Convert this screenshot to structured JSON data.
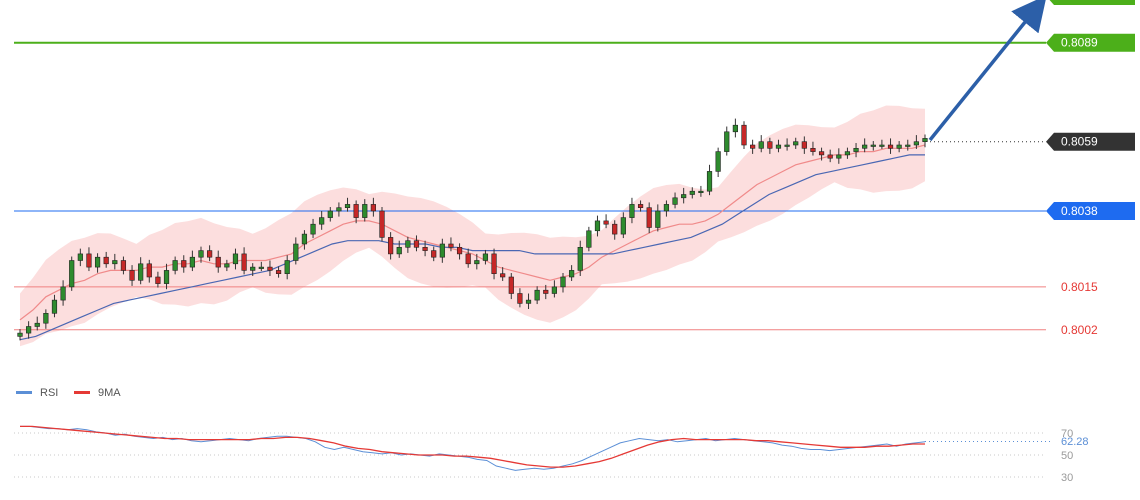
{
  "chart_data": [
    {
      "type": "candlestick",
      "y_range": [
        7994,
        8094
      ],
      "levels": [
        {
          "value": "0.8089",
          "price": 8089,
          "color": "#4caf1a",
          "style": "green-line",
          "label_color": "#ffffff"
        },
        {
          "value": "0.8059",
          "price": 8059,
          "color": "#333333",
          "style": "current-dotted",
          "label_color": "#ffffff"
        },
        {
          "value": "0.8038",
          "price": 8038,
          "color": "#1e6bf0",
          "style": "blue-line",
          "label_color": "#ffffff"
        },
        {
          "value": "0.8015",
          "price": 8015,
          "color": "#f08080",
          "style": "red-line",
          "label_color": "#e53935"
        },
        {
          "value": "0.8002",
          "price": 8002,
          "color": "#f08080",
          "style": "red-line",
          "label_color": "#e53935"
        }
      ],
      "candles_close": [
        8001,
        8003,
        8004,
        8007,
        8011,
        8015,
        8023,
        8025,
        8021,
        8024,
        8022,
        8023,
        8020,
        8017,
        8022,
        8018,
        8016,
        8020,
        8023,
        8021,
        8024,
        8026,
        8024,
        8021,
        8022,
        8025,
        8020,
        8021,
        8021,
        8020,
        8019,
        8023,
        8028,
        8031,
        8034,
        8036,
        8038,
        8039,
        8040,
        8036,
        8040,
        8038,
        8030,
        8025,
        8027,
        8029,
        8027,
        8026,
        8024,
        8028,
        8027,
        8025,
        8022,
        8023,
        8025,
        8019,
        8018,
        8013,
        8010,
        8011,
        8014,
        8013,
        8015,
        8018,
        8020,
        8027,
        8032,
        8035,
        8034,
        8031,
        8036,
        8040,
        8039,
        8033,
        8038,
        8040,
        8042,
        8043,
        8044,
        8044,
        8050,
        8056,
        8062,
        8064,
        8058,
        8057,
        8059,
        8057,
        8058,
        8058,
        8059,
        8057,
        8056,
        8055,
        8054,
        8055,
        8056,
        8057,
        8058,
        8058,
        8058,
        8057,
        8058,
        8058,
        8059,
        8060
      ],
      "ma_red": [
        8005,
        8008,
        8012,
        8014,
        8016,
        8017,
        8019,
        8020,
        8020,
        8020,
        8021,
        8021,
        8022,
        8022,
        8023,
        8022,
        8022,
        8023,
        8023,
        8023,
        8024,
        8025,
        8028,
        8030,
        8032,
        8034,
        8035,
        8035,
        8034,
        8032,
        8030,
        8029,
        8028,
        8027,
        8026,
        8025,
        8023,
        8021,
        8020,
        8019,
        8018,
        8017,
        8018,
        8019,
        8021,
        8024,
        8026,
        8028,
        8030,
        8032,
        8033,
        8034,
        8034,
        8035,
        8037,
        8040,
        8043,
        8046,
        8048,
        8050,
        8052,
        8053,
        8054,
        8055,
        8055,
        8056,
        8056,
        8057,
        8057,
        8057,
        8058
      ],
      "ma_blue": [
        7999,
        8000,
        8002,
        8004,
        8006,
        8008,
        8010,
        8011,
        8012,
        8013,
        8014,
        8015,
        8016,
        8017,
        8018,
        8019,
        8020,
        8022,
        8024,
        8026,
        8028,
        8029,
        8029,
        8029,
        8028,
        8028,
        8028,
        8027,
        8027,
        8026,
        8026,
        8026,
        8026,
        8025,
        8025,
        8025,
        8025,
        8025,
        8025,
        8026,
        8027,
        8028,
        8029,
        8030,
        8032,
        8034,
        8037,
        8040,
        8043,
        8045,
        8047,
        8049,
        8050,
        8051,
        8052,
        8053,
        8054,
        8055,
        8055
      ]
    },
    {
      "type": "line",
      "name": "rsi-panel",
      "y_ticks": [
        "70",
        "50",
        "30"
      ],
      "y_range": [
        25,
        78
      ],
      "current_value": "62.28",
      "series": [
        {
          "name": "RSI",
          "color": "#5b8fd6",
          "values": [
            76,
            76,
            75,
            74,
            74,
            73,
            74,
            73,
            71,
            70,
            68,
            69,
            67,
            66,
            65,
            66,
            64,
            65,
            63,
            62,
            63,
            64,
            65,
            64,
            63,
            65,
            66,
            67,
            67,
            66,
            65,
            62,
            57,
            55,
            57,
            55,
            53,
            52,
            51,
            52,
            50,
            51,
            50,
            49,
            51,
            50,
            49,
            48,
            46,
            45,
            40,
            38,
            36,
            37,
            38,
            37,
            38,
            40,
            42,
            45,
            49,
            53,
            57,
            61,
            63,
            65,
            64,
            63,
            64,
            62,
            63,
            64,
            65,
            63,
            64,
            65,
            64,
            63,
            62,
            61,
            59,
            58,
            56,
            55,
            55,
            54,
            55,
            56,
            57,
            58,
            59,
            60,
            58,
            60,
            61,
            62
          ]
        },
        {
          "name": "9MA",
          "color": "#e53935",
          "values": [
            76,
            76,
            75,
            74,
            73,
            72,
            71,
            70,
            69,
            68,
            67,
            66,
            65,
            65,
            64,
            64,
            64,
            64,
            64,
            64,
            65,
            65,
            66,
            66,
            65,
            63,
            61,
            58,
            56,
            55,
            53,
            52,
            51,
            50,
            50,
            50,
            49,
            49,
            48,
            47,
            45,
            43,
            41,
            40,
            39,
            39,
            40,
            42,
            44,
            47,
            51,
            55,
            59,
            62,
            64,
            65,
            64,
            64,
            64,
            64,
            64,
            63,
            63,
            62,
            61,
            60,
            59,
            58,
            57,
            57,
            57,
            58,
            58,
            59,
            60,
            60
          ]
        }
      ]
    }
  ]
}
